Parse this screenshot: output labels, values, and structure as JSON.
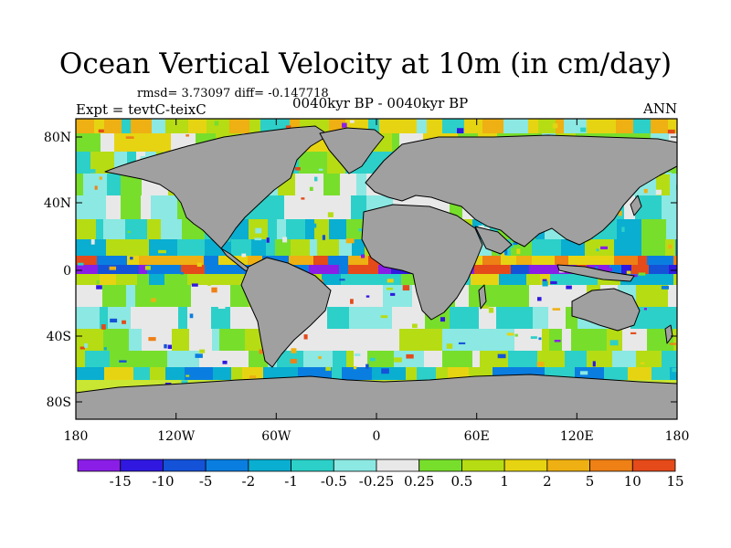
{
  "title": "Ocean Vertical Velocity at 10m (in cm/day)",
  "stats_line": "rmsd= 3.73097 diff= -0.147718",
  "left_label": "Expt = tevtC-teixC",
  "center_label": "0040kyr BP - 0040kyr BP",
  "right_label": "ANN",
  "y_ticks": [
    "80N",
    "40N",
    "0",
    "40S",
    "80S"
  ],
  "x_ticks": [
    "180",
    "120W",
    "60W",
    "0",
    "60E",
    "120E",
    "180"
  ],
  "colorbar": {
    "labels": [
      "-15",
      "-10",
      "-5",
      "-2",
      "-1",
      "-0.5",
      "-0.25",
      "0.25",
      "0.5",
      "1",
      "2",
      "5",
      "10",
      "15"
    ],
    "colors": [
      "#8a1ee6",
      "#3018e0",
      "#1452d8",
      "#0a7ee0",
      "#0aaed0",
      "#2cd0c8",
      "#8ce8e2",
      "#e8e8e8",
      "#78de2c",
      "#b6dc14",
      "#e6d412",
      "#eeb012",
      "#ee8016",
      "#e44a1a"
    ]
  },
  "colors": {
    "land": "#a0a0a0",
    "coast": "#000000"
  }
}
